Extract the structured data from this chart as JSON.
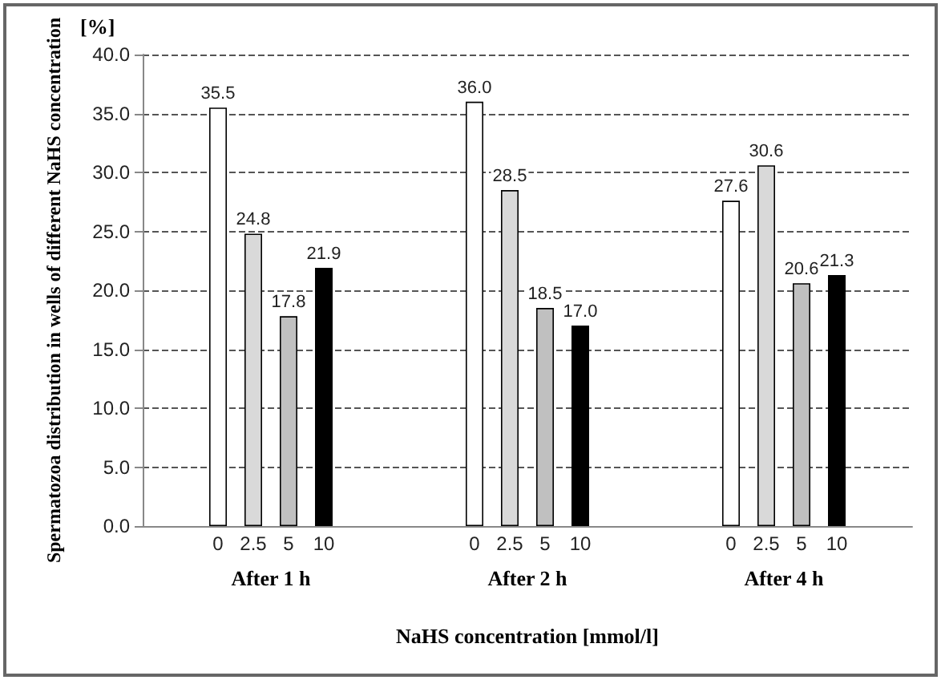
{
  "chart_data": {
    "type": "bar",
    "xlabel": "NaHS concentration [mmol/l]",
    "ylabel": "Spermatozoa distribution in wells of different NaHS concentration",
    "annotations": [
      "[%]"
    ],
    "categories": [
      "After 1 h",
      "After 2 h",
      "After 4 h"
    ],
    "series": [
      {
        "name": "0",
        "color": "#ffffff",
        "values": [
          35.5,
          36.0,
          27.6
        ],
        "value_labels": [
          "35.5",
          "36.0",
          "27.6"
        ]
      },
      {
        "name": "2.5",
        "color": "#d9d9d9",
        "values": [
          24.8,
          28.5,
          30.6
        ],
        "value_labels": [
          "24.8",
          "28.5",
          "30.6"
        ]
      },
      {
        "name": "5",
        "color": "#c0c0c0",
        "values": [
          17.8,
          18.5,
          20.6
        ],
        "value_labels": [
          "17.8",
          "18.5",
          "20.6"
        ]
      },
      {
        "name": "10",
        "color": "#000000",
        "values": [
          21.9,
          17.0,
          21.3
        ],
        "value_labels": [
          "21.9",
          "17.0",
          "21.3"
        ]
      }
    ],
    "ylim": [
      0,
      40
    ],
    "yticks": [
      {
        "value": 0,
        "label": "0.0"
      },
      {
        "value": 5,
        "label": "5.0"
      },
      {
        "value": 10,
        "label": "10.0"
      },
      {
        "value": 15,
        "label": "15.0"
      },
      {
        "value": 20,
        "label": "20.0"
      },
      {
        "value": 25,
        "label": "25.0"
      },
      {
        "value": 30,
        "label": "30.0"
      },
      {
        "value": 35,
        "label": "35.0"
      },
      {
        "value": 40,
        "label": "40.0"
      }
    ],
    "grid": "y",
    "legend": false
  }
}
